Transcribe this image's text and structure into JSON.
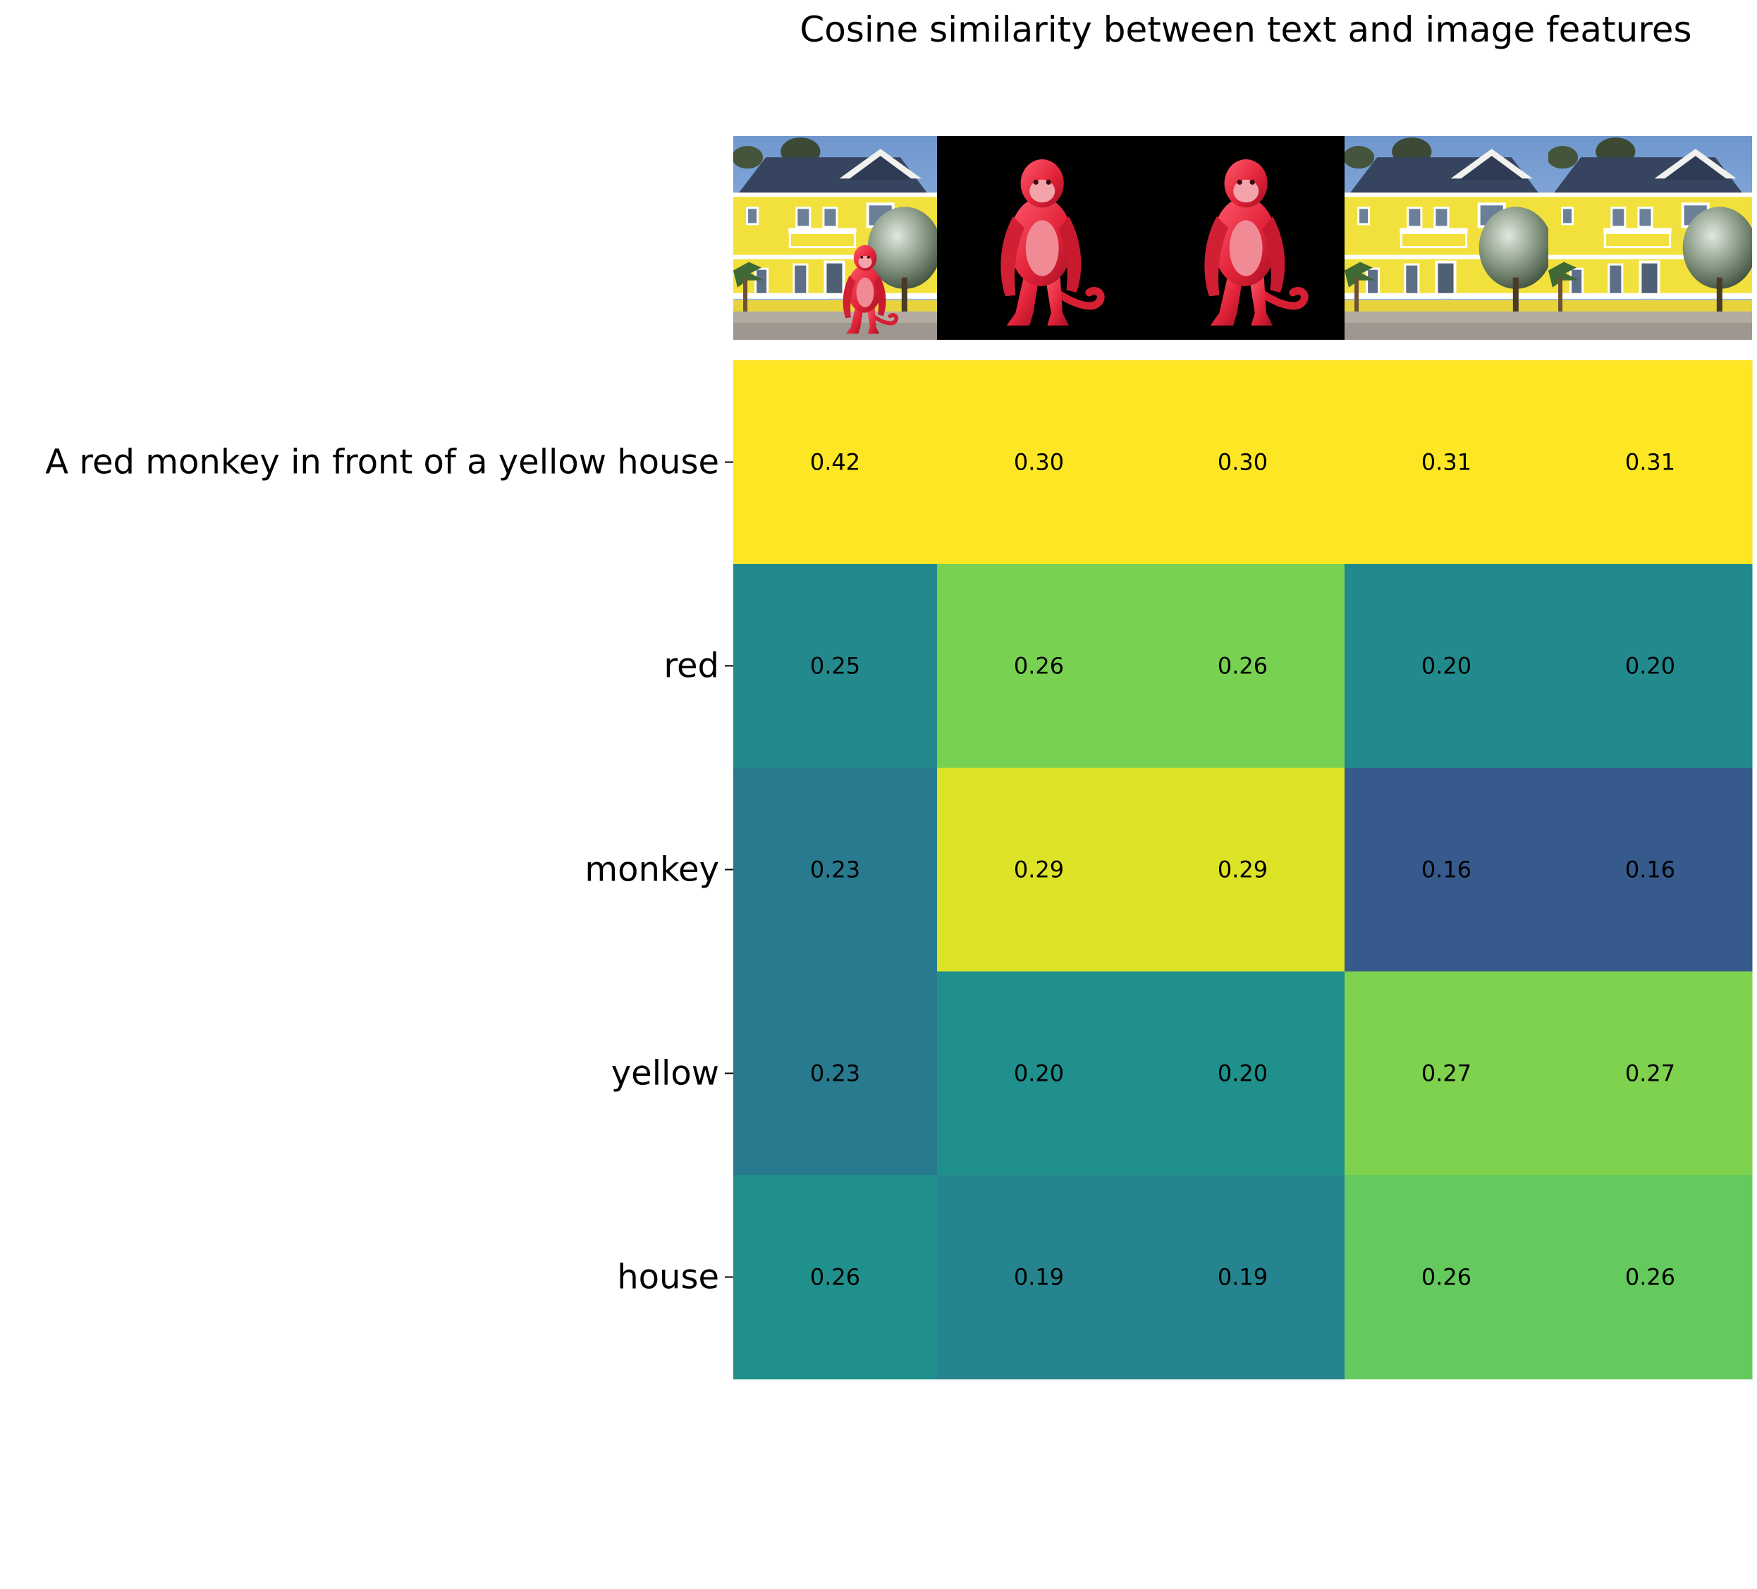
{
  "chart_data": {
    "type": "heatmap",
    "title": "Cosine similarity between text and image features",
    "row_labels": [
      "A red monkey in front of a yellow house",
      "red",
      "monkey",
      "yellow",
      "house"
    ],
    "column_images": [
      "red monkey standing in front of yellow house",
      "red monkey on black background",
      "red monkey on black background",
      "yellow house",
      "yellow house"
    ],
    "values": [
      [
        0.42,
        0.3,
        0.3,
        0.31,
        0.31
      ],
      [
        0.25,
        0.26,
        0.26,
        0.2,
        0.2
      ],
      [
        0.23,
        0.29,
        0.29,
        0.16,
        0.16
      ],
      [
        0.23,
        0.2,
        0.2,
        0.27,
        0.27
      ],
      [
        0.26,
        0.19,
        0.19,
        0.26,
        0.26
      ]
    ],
    "value_format": "0.00",
    "colormap": "viridis",
    "grid": false,
    "colorbar": false
  }
}
